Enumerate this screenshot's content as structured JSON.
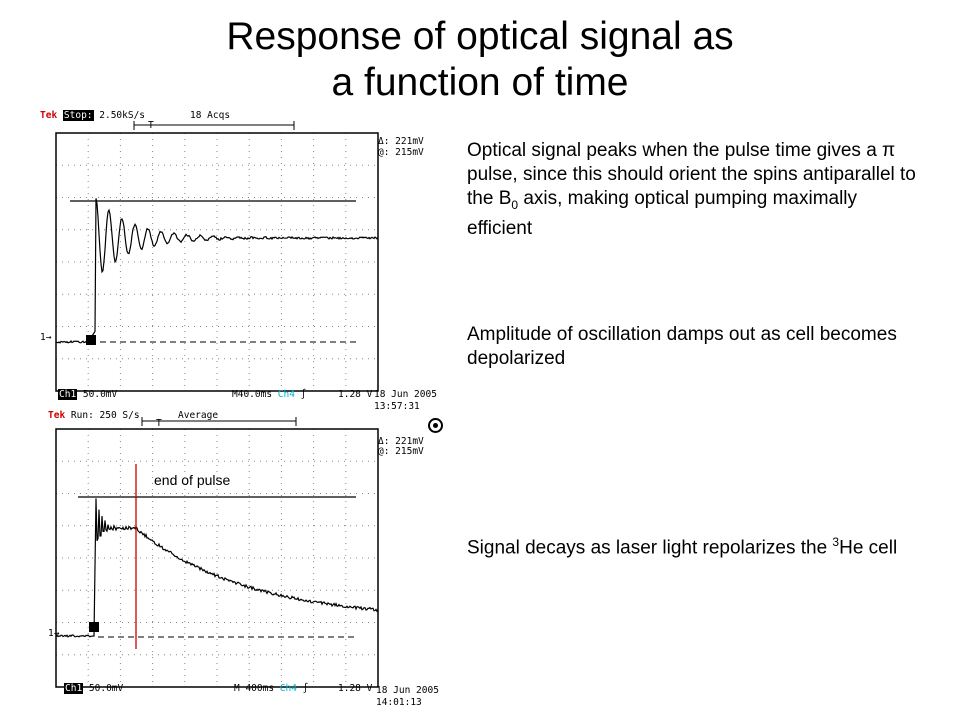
{
  "title": {
    "line1": "Response of optical signal as",
    "line2": "a function of time"
  },
  "bullets": {
    "b1_text": "Optical signal peaks when the pulse time gives a π pulse, since this should orient the spins antiparallel to the B",
    "b1_sub": "0",
    "b1_tail": " axis, making optical pumping maximally efficient",
    "b2": "Amplitude of oscillation damps out as cell becomes depolarized",
    "b3_pre": "Signal decays as laser light repolarizes the ",
    "b3_sup": "3",
    "b3_post": "He cell"
  },
  "scope_top": {
    "brand": "Tek",
    "mode": "Stop:",
    "rate": "2.50kS/s",
    "acq": "18 Acqs",
    "trig_marker": "T",
    "delta": "Δ: 221mV",
    "at": "@: 215mV",
    "ch1_label": "Ch1",
    "ch1_scale": "50.0mV",
    "timebase": "M40.0ms",
    "ch4_label": "Ch4",
    "trig_level": "1.28 V",
    "date": "18 Jun 2005",
    "time": "13:57:31",
    "ch_marker": "1→"
  },
  "scope_bottom": {
    "brand": "Tek",
    "mode": "Run:",
    "rate": "250 S/s",
    "acq": "Average",
    "trig_marker": "T",
    "delta": "Δ: 221mV",
    "at": "@: 215mV",
    "ch1_label": "Ch1",
    "ch1_scale": "50.0mV",
    "timebase": "M 400ms",
    "ch4_label": "Ch4",
    "trig_level": "1.28 V",
    "date": "18 Jun 2005",
    "time": "14:01:13",
    "ch_marker": "1→",
    "annotation": "end of pulse"
  },
  "colors": {
    "trace": "#000000",
    "grid": "#888888",
    "annotation_line": "#cc0000",
    "brand": "#d00000",
    "ch4": "#00b0d0"
  },
  "icons": {
    "cursor": "radio-bullet-icon"
  }
}
